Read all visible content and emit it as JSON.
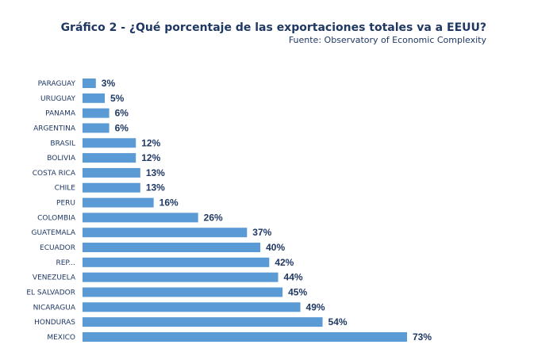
{
  "chart_data": {
    "type": "bar",
    "orientation": "horizontal",
    "title": "Gráfico 2 - ¿Qué porcentaje de las exportaciones totales va a EEUU?",
    "subtitle": "Fuente: Observatory of Economic Complexity",
    "bar_color": "#5b9bd5",
    "label_color": "#1f3864",
    "grid": false,
    "legend": "none",
    "categories": [
      "PARAGUAY",
      "URUGUAY",
      "PANAMA",
      "ARGENTINA",
      "BRASIL",
      "BOLIVIA",
      "COSTA RICA",
      "CHILE",
      "PERU",
      "COLOMBIA",
      "GUATEMALA",
      "ECUADOR",
      "REP...",
      "VENEZUELA",
      "EL SALVADOR",
      "NICARAGUA",
      "HONDURAS",
      "MEXICO"
    ],
    "values": [
      3,
      5,
      6,
      6,
      12,
      12,
      13,
      13,
      16,
      26,
      37,
      40,
      42,
      44,
      45,
      49,
      54,
      73
    ],
    "value_labels": [
      "3%",
      "5%",
      "6%",
      "6%",
      "12%",
      "12%",
      "13%",
      "13%",
      "16%",
      "26%",
      "37%",
      "40%",
      "42%",
      "44%",
      "45%",
      "49%",
      "54%",
      "73%"
    ],
    "xlim": [
      0,
      73
    ]
  }
}
